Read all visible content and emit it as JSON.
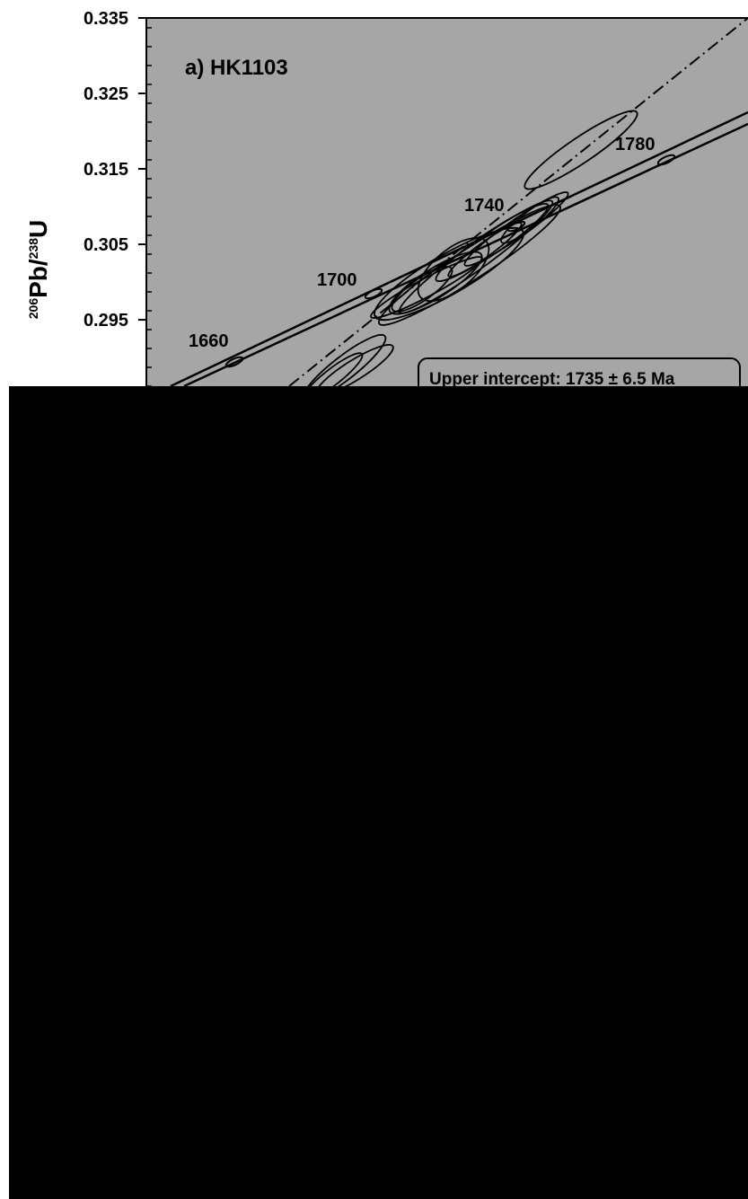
{
  "chart_data": {
    "type": "scatter",
    "subtype": "concordia-diagram",
    "title": "a) HK1103",
    "xlabel": "",
    "ylabel": {
      "pre": "206",
      "mid": "Pb/",
      "sup": "238",
      "post": "U"
    },
    "y_ticks": [
      "0.335",
      "0.325",
      "0.315",
      "0.305",
      "0.295"
    ],
    "ylim": [
      0.2862,
      0.335
    ],
    "grid": false,
    "concordia_age_labels": [
      {
        "age": "1660",
        "pb206_u238": 0.2939
      },
      {
        "age": "1700",
        "pb206_u238": 0.302
      },
      {
        "age": "1740",
        "pb206_u238": 0.3097
      },
      {
        "age": "1780",
        "pb206_u238": 0.3178
      }
    ],
    "annotation": "Upper intercept: 1735 ± 6.5 Ma",
    "visible_portion_note": ""
  },
  "colors": {
    "plot_background": "#a6a6a6",
    "outside": "#ffffff",
    "lower_mask": "#000000",
    "ink": "#000000"
  }
}
